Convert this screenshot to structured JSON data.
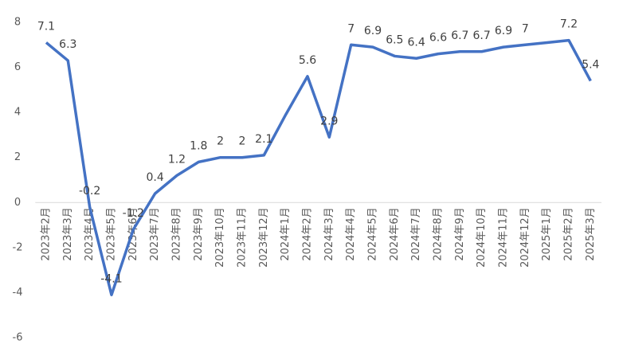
{
  "chart_data": {
    "type": "line",
    "categories": [
      "2023年2月",
      "2023年3月",
      "2023年4月",
      "2023年5月",
      "2023年6月",
      "2023年7月",
      "2023年8月",
      "2023年9月",
      "2023年10月",
      "2023年11月",
      "2023年12月",
      "2024年1月",
      "2024年2月",
      "2024年3月",
      "2024年4月",
      "2024年5月",
      "2024年6月",
      "2024年7月",
      "2024年8月",
      "2024年9月",
      "2024年10月",
      "2024年11月",
      "2024年12月",
      "2025年1月",
      "2025年2月",
      "2025年3月"
    ],
    "series": [
      {
        "color": "#4472c4",
        "values": [
          7.1,
          6.3,
          -0.2,
          -4.1,
          -1.2,
          0.4,
          1.2,
          1.8,
          2,
          2,
          2.1,
          3.9,
          5.6,
          2.9,
          7,
          6.9,
          6.5,
          6.4,
          6.6,
          6.7,
          6.7,
          6.9,
          7,
          7.1,
          7.2,
          5.4
        ],
        "value_labels": [
          "7.1",
          "6.3",
          "-0.2",
          "-4.1",
          "-1.2",
          "0.4",
          "1.2",
          "1.8",
          "2",
          "2",
          "2.1",
          null,
          "5.6",
          "2.9",
          "7",
          "6.9",
          "6.5",
          "6.4",
          "6.6",
          "6.7",
          "6.7",
          "6.9",
          "7",
          null,
          "7.2",
          "5.4"
        ]
      }
    ],
    "ylim": [
      -6,
      8
    ],
    "yticks": [
      -6,
      -4,
      -2,
      0,
      2,
      4,
      6,
      8
    ],
    "grid": false
  }
}
